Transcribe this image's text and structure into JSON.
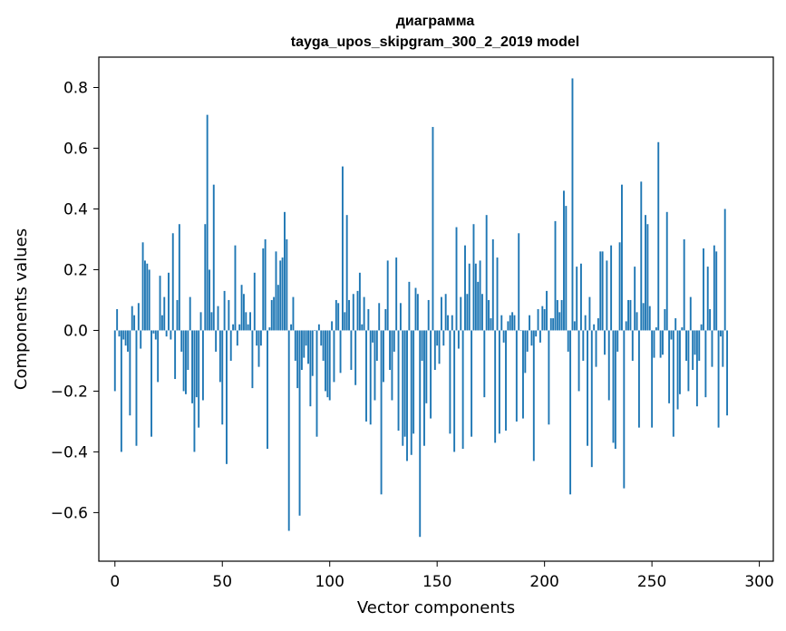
{
  "chart_data": {
    "type": "bar",
    "title": "диаграмма",
    "subtitle": "tayga_upos_skipgram_300_2_2019 model",
    "xlabel": "Vector components",
    "ylabel": "Components values",
    "xlim": [
      -7.5,
      306.5
    ],
    "ylim": [
      -0.76,
      0.9
    ],
    "x_ticks": [
      0,
      50,
      100,
      150,
      200,
      250,
      300
    ],
    "y_ticks": [
      0.8,
      0.6,
      0.4,
      0.2,
      0.0,
      -0.2,
      -0.4,
      -0.6
    ],
    "x_tick_labels": [
      "0",
      "50",
      "100",
      "150",
      "200",
      "250",
      "300"
    ],
    "y_tick_labels": [
      "0.8",
      "0.6",
      "0.4",
      "0.2",
      "0.0",
      "−0.2",
      "−0.4",
      "−0.6"
    ],
    "grid": false,
    "bar_color": "#1f77b4",
    "values": [
      -0.2,
      0.07,
      -0.02,
      -0.4,
      -0.03,
      -0.05,
      -0.07,
      -0.28,
      0.08,
      0.05,
      -0.38,
      0.09,
      -0.06,
      0.29,
      0.23,
      0.22,
      0.2,
      -0.35,
      -0.01,
      -0.03,
      -0.17,
      0.18,
      0.05,
      0.11,
      -0.02,
      0.19,
      -0.03,
      0.32,
      -0.16,
      0.1,
      0.35,
      -0.07,
      -0.2,
      -0.21,
      -0.13,
      0.11,
      -0.24,
      -0.4,
      -0.22,
      -0.32,
      0.06,
      -0.23,
      0.35,
      0.71,
      0.2,
      0.06,
      0.48,
      -0.07,
      0.08,
      -0.17,
      -0.31,
      0.13,
      -0.44,
      0.1,
      -0.1,
      0.02,
      0.28,
      -0.05,
      0.02,
      0.15,
      0.12,
      0.06,
      0.02,
      0.06,
      -0.19,
      0.19,
      -0.05,
      -0.12,
      -0.05,
      0.27,
      0.3,
      -0.39,
      0.01,
      0.1,
      0.11,
      0.26,
      0.15,
      0.23,
      0.24,
      0.39,
      0.3,
      -0.66,
      0.02,
      0.11,
      -0.1,
      -0.19,
      -0.61,
      -0.13,
      -0.09,
      -0.05,
      -0.11,
      -0.25,
      -0.15,
      0.0,
      -0.35,
      0.02,
      -0.05,
      -0.1,
      -0.2,
      -0.22,
      -0.23,
      0.03,
      -0.17,
      0.1,
      0.09,
      -0.14,
      0.54,
      0.06,
      0.38,
      0.1,
      -0.13,
      0.12,
      -0.18,
      0.13,
      0.19,
      0.02,
      0.11,
      -0.3,
      0.07,
      -0.31,
      -0.04,
      -0.23,
      -0.1,
      0.09,
      -0.54,
      -0.17,
      0.07,
      0.23,
      -0.13,
      -0.23,
      -0.07,
      0.24,
      -0.33,
      0.09,
      -0.38,
      -0.35,
      -0.43,
      0.16,
      -0.41,
      -0.34,
      0.14,
      0.12,
      -0.68,
      -0.1,
      -0.38,
      -0.24,
      0.1,
      -0.29,
      0.67,
      -0.13,
      -0.05,
      -0.11,
      0.11,
      -0.05,
      0.12,
      0.05,
      -0.34,
      0.05,
      -0.4,
      0.34,
      -0.06,
      0.11,
      -0.39,
      0.28,
      0.12,
      0.22,
      -0.35,
      0.35,
      0.22,
      0.16,
      0.23,
      0.12,
      -0.22,
      0.38,
      0.1,
      0.04,
      0.3,
      -0.37,
      0.24,
      -0.34,
      0.05,
      -0.04,
      -0.33,
      0.03,
      0.05,
      0.06,
      0.05,
      -0.3,
      0.32,
      0.0,
      -0.29,
      -0.14,
      -0.07,
      0.05,
      -0.05,
      -0.43,
      -0.02,
      0.07,
      -0.04,
      0.08,
      0.07,
      0.13,
      -0.31,
      0.04,
      0.04,
      0.36,
      0.1,
      0.06,
      0.1,
      0.46,
      0.41,
      -0.07,
      -0.54,
      0.83,
      0.03,
      0.21,
      -0.2,
      0.22,
      -0.1,
      0.05,
      -0.38,
      0.11,
      -0.45,
      0.02,
      -0.12,
      0.04,
      0.26,
      0.26,
      -0.08,
      0.23,
      -0.23,
      0.28,
      -0.37,
      -0.39,
      -0.07,
      0.29,
      0.48,
      -0.52,
      0.03,
      0.1,
      0.1,
      -0.1,
      0.21,
      0.06,
      -0.32,
      0.49,
      0.09,
      0.38,
      0.35,
      0.08,
      -0.32,
      -0.09,
      0.01,
      0.62,
      -0.09,
      -0.08,
      0.07,
      0.39,
      -0.24,
      -0.03,
      -0.35,
      0.04,
      -0.26,
      -0.21,
      0.01,
      0.3,
      -0.1,
      -0.2,
      0.11,
      -0.13,
      -0.08,
      -0.25,
      -0.1,
      0.02,
      0.27,
      -0.22,
      0.21,
      0.07,
      -0.12,
      0.28,
      0.26,
      -0.32,
      -0.02,
      -0.12,
      0.4,
      -0.28
    ]
  }
}
